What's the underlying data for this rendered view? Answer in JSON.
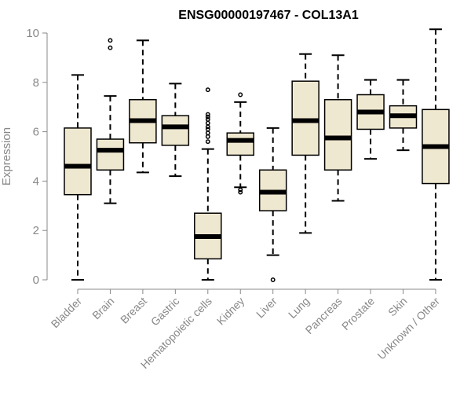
{
  "chart_data": {
    "type": "boxplot",
    "title": "ENSG00000197467 - COL13A1",
    "xlabel": "",
    "ylabel": "Expression",
    "ylim": [
      0,
      10
    ],
    "yticks": [
      "0",
      "2",
      "4",
      "6",
      "8",
      "10"
    ],
    "grid": false,
    "box_color": "#EFE8D0",
    "line_color": "#000000",
    "axis_color": "#888888",
    "categories": [
      "Bladder",
      "Brain",
      "Breast",
      "Gastric",
      "Hematopoietic cells",
      "Kidney",
      "Liver",
      "Lung",
      "Pancreas",
      "Prostate",
      "Skin",
      "Unknown / Other"
    ],
    "boxes": [
      {
        "min": 0.0,
        "q1": 3.45,
        "median": 4.6,
        "q3": 6.15,
        "max": 8.3,
        "outliers": []
      },
      {
        "min": 3.1,
        "q1": 4.45,
        "median": 5.25,
        "q3": 5.7,
        "max": 7.45,
        "outliers": [
          9.4,
          9.7
        ]
      },
      {
        "min": 4.35,
        "q1": 5.55,
        "median": 6.45,
        "q3": 7.3,
        "max": 9.7,
        "outliers": []
      },
      {
        "min": 4.2,
        "q1": 5.45,
        "median": 6.2,
        "q3": 6.65,
        "max": 7.95,
        "outliers": []
      },
      {
        "min": 0.0,
        "q1": 0.85,
        "median": 1.75,
        "q3": 2.7,
        "max": 5.3,
        "outliers": [
          5.6,
          5.8,
          5.95,
          6.1,
          6.2,
          6.35,
          6.5,
          6.6,
          6.7,
          7.7
        ]
      },
      {
        "min": 3.75,
        "q1": 5.05,
        "median": 5.65,
        "q3": 5.95,
        "max": 7.2,
        "outliers": [
          3.55,
          3.65,
          7.5
        ]
      },
      {
        "min": 1.0,
        "q1": 2.8,
        "median": 3.55,
        "q3": 4.45,
        "max": 6.15,
        "outliers": [
          0.0
        ]
      },
      {
        "min": 1.9,
        "q1": 5.05,
        "median": 6.45,
        "q3": 8.05,
        "max": 9.15,
        "outliers": []
      },
      {
        "min": 3.2,
        "q1": 4.45,
        "median": 5.75,
        "q3": 7.3,
        "max": 9.1,
        "outliers": []
      },
      {
        "min": 4.9,
        "q1": 6.1,
        "median": 6.8,
        "q3": 7.5,
        "max": 8.1,
        "outliers": []
      },
      {
        "min": 5.25,
        "q1": 6.15,
        "median": 6.65,
        "q3": 7.05,
        "max": 8.1,
        "outliers": []
      },
      {
        "min": 0.0,
        "q1": 3.9,
        "median": 5.4,
        "q3": 6.9,
        "max": 10.15,
        "outliers": []
      }
    ]
  }
}
